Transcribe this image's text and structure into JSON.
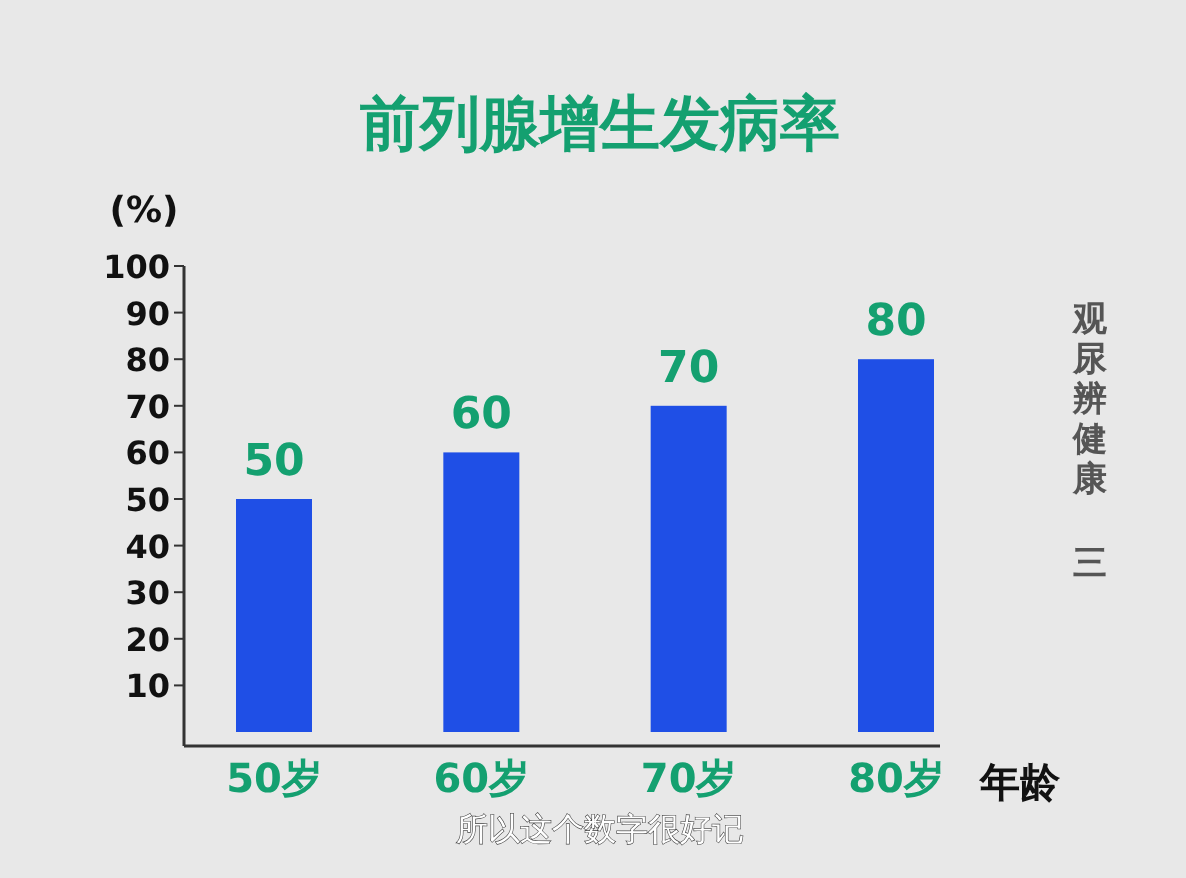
{
  "chart_data": {
    "type": "bar",
    "title": "前列腺增生发病率",
    "xlabel": "年龄",
    "ylabel": "(%)",
    "categories": [
      "50岁",
      "60岁",
      "70岁",
      "80岁"
    ],
    "values": [
      50,
      60,
      70,
      80
    ],
    "color": "#1f4fe6",
    "data_labels": true,
    "ylim": [
      0,
      100
    ],
    "yticks": [
      10,
      20,
      30,
      40,
      50,
      60,
      70,
      80,
      90,
      100
    ],
    "annotations": [
      "观尿辨健康",
      "三",
      "所以这个数字很好记"
    ]
  }
}
